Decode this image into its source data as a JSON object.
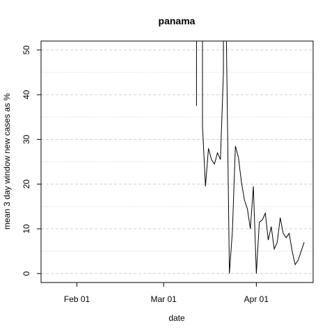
{
  "chart_data": {
    "type": "line",
    "title": "panama",
    "xlabel": "date",
    "ylabel": "mean  3  day window new cases as %",
    "x_ticks": [
      {
        "date": "2020-02-01",
        "label": "Feb 01"
      },
      {
        "date": "2020-03-01",
        "label": "Mar 01"
      },
      {
        "date": "2020-04-01",
        "label": "Apr 01"
      }
    ],
    "y_ticks": [
      0,
      10,
      20,
      30,
      40,
      50
    ],
    "xlim": [
      "2020-01-20",
      "2020-04-20"
    ],
    "ylim": [
      -2,
      52
    ],
    "grid": {
      "major_y": [
        0,
        10,
        20,
        30,
        40,
        50
      ],
      "minor_y": [
        5,
        15,
        25,
        35,
        45
      ],
      "style": "dashed"
    },
    "series": [
      {
        "color": "#000000",
        "points": [
          {
            "x": "2020-03-12",
            "y": 37.5
          },
          {
            "x": "2020-03-12",
            "y": 52
          },
          {
            "x": "2020-03-14",
            "y": 52
          },
          {
            "x": "2020-03-14",
            "y": 33
          },
          {
            "x": "2020-03-15",
            "y": 19.5
          },
          {
            "x": "2020-03-16",
            "y": 28
          },
          {
            "x": "2020-03-17",
            "y": 25.5
          },
          {
            "x": "2020-03-18",
            "y": 24.5
          },
          {
            "x": "2020-03-19",
            "y": 27
          },
          {
            "x": "2020-03-20",
            "y": 25.5
          },
          {
            "x": "2020-03-21",
            "y": 45
          },
          {
            "x": "2020-03-21",
            "y": 52
          },
          {
            "x": "2020-03-22",
            "y": 52
          },
          {
            "x": "2020-03-23",
            "y": 0
          },
          {
            "x": "2020-03-24",
            "y": 9.5
          },
          {
            "x": "2020-03-25",
            "y": 28.5
          },
          {
            "x": "2020-03-26",
            "y": 26
          },
          {
            "x": "2020-03-27",
            "y": 20.5
          },
          {
            "x": "2020-03-28",
            "y": 16.5
          },
          {
            "x": "2020-03-29",
            "y": 14.5
          },
          {
            "x": "2020-03-30",
            "y": 10
          },
          {
            "x": "2020-03-31",
            "y": 19.5
          },
          {
            "x": "2020-04-01",
            "y": 0
          },
          {
            "x": "2020-04-02",
            "y": 11.5
          },
          {
            "x": "2020-04-03",
            "y": 12
          },
          {
            "x": "2020-04-04",
            "y": 13.5
          },
          {
            "x": "2020-04-05",
            "y": 7.5
          },
          {
            "x": "2020-04-06",
            "y": 10.5
          },
          {
            "x": "2020-04-07",
            "y": 5.5
          },
          {
            "x": "2020-04-08",
            "y": 7
          },
          {
            "x": "2020-04-09",
            "y": 12.5
          },
          {
            "x": "2020-04-10",
            "y": 9
          },
          {
            "x": "2020-04-11",
            "y": 8
          },
          {
            "x": "2020-04-12",
            "y": 9
          },
          {
            "x": "2020-04-13",
            "y": 5
          },
          {
            "x": "2020-04-14",
            "y": 2
          },
          {
            "x": "2020-04-15",
            "y": 3
          },
          {
            "x": "2020-04-16",
            "y": 5
          },
          {
            "x": "2020-04-17",
            "y": 7
          }
        ]
      }
    ]
  }
}
